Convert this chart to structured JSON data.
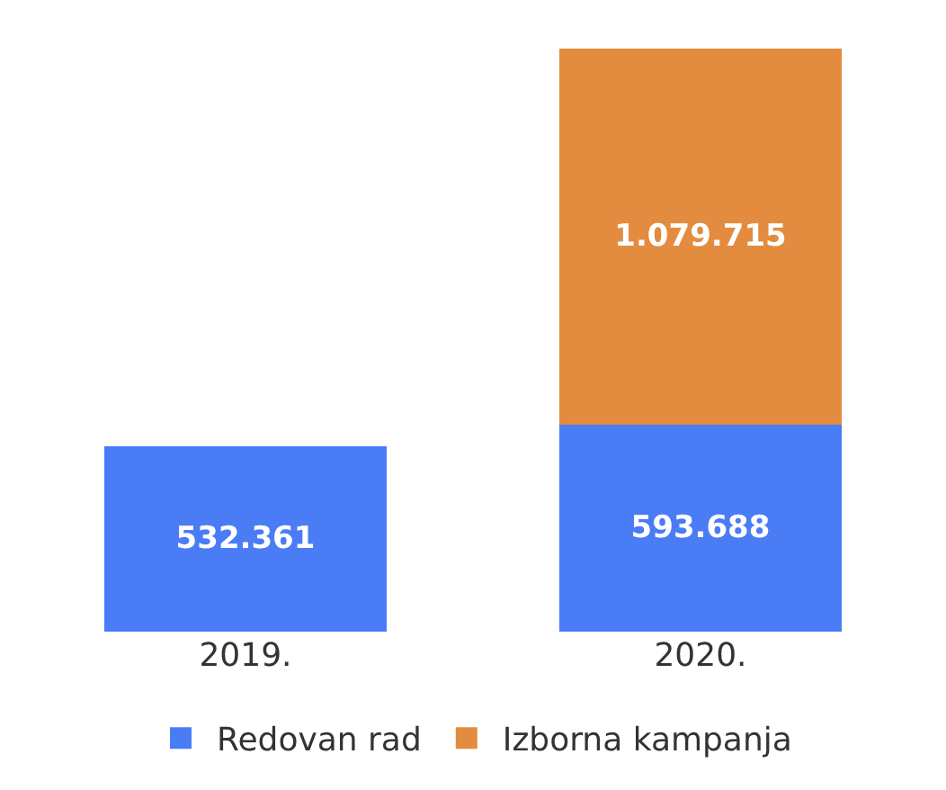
{
  "chart_data": {
    "type": "bar",
    "stacked": true,
    "categories": [
      "2019.",
      "2020."
    ],
    "series": [
      {
        "name": "Redovan rad",
        "color": "#4a7cf6",
        "values": [
          532361,
          593688
        ],
        "value_labels": [
          "532.361",
          "593.688"
        ]
      },
      {
        "name": "Izborna kampanja",
        "color": "#e38c3f",
        "values": [
          null,
          1079715
        ],
        "value_labels": [
          null,
          "1.079.715"
        ]
      }
    ],
    "legend": "bottom"
  }
}
